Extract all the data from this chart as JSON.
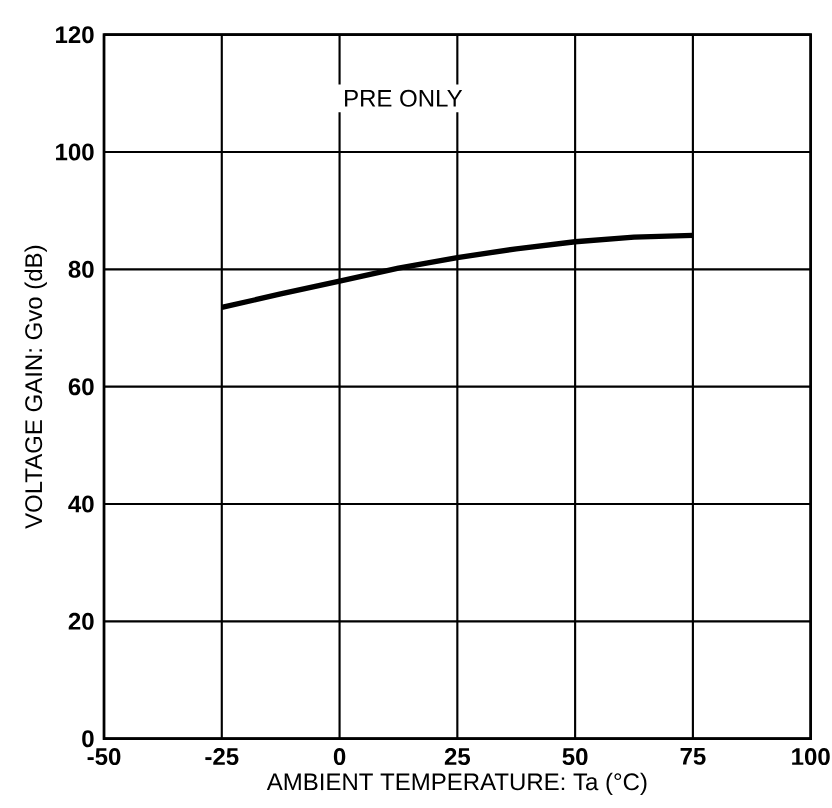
{
  "chart_data": {
    "type": "line",
    "xlabel": "AMBIENT TEMPERATURE: Ta (°C)",
    "ylabel": "VOLTAGE GAIN: Gvo (dB)",
    "annotations": [
      "PRE ONLY"
    ],
    "x": [
      -25,
      -12.5,
      0,
      12.5,
      25,
      37.5,
      50,
      62.5,
      75
    ],
    "series": [
      {
        "color": "#000000",
        "values": [
          73.5,
          75.8,
          78,
          80.2,
          82,
          83.5,
          84.7,
          85.5,
          85.8
        ]
      }
    ],
    "xlim": [
      -50,
      100
    ],
    "xticks": [
      -50,
      -25,
      0,
      25,
      50,
      75,
      100
    ],
    "ylim": [
      0,
      120
    ],
    "yticks": [
      0,
      20,
      40,
      60,
      80,
      100,
      120
    ],
    "grid": true,
    "marker": "none",
    "line_style": "solid"
  }
}
